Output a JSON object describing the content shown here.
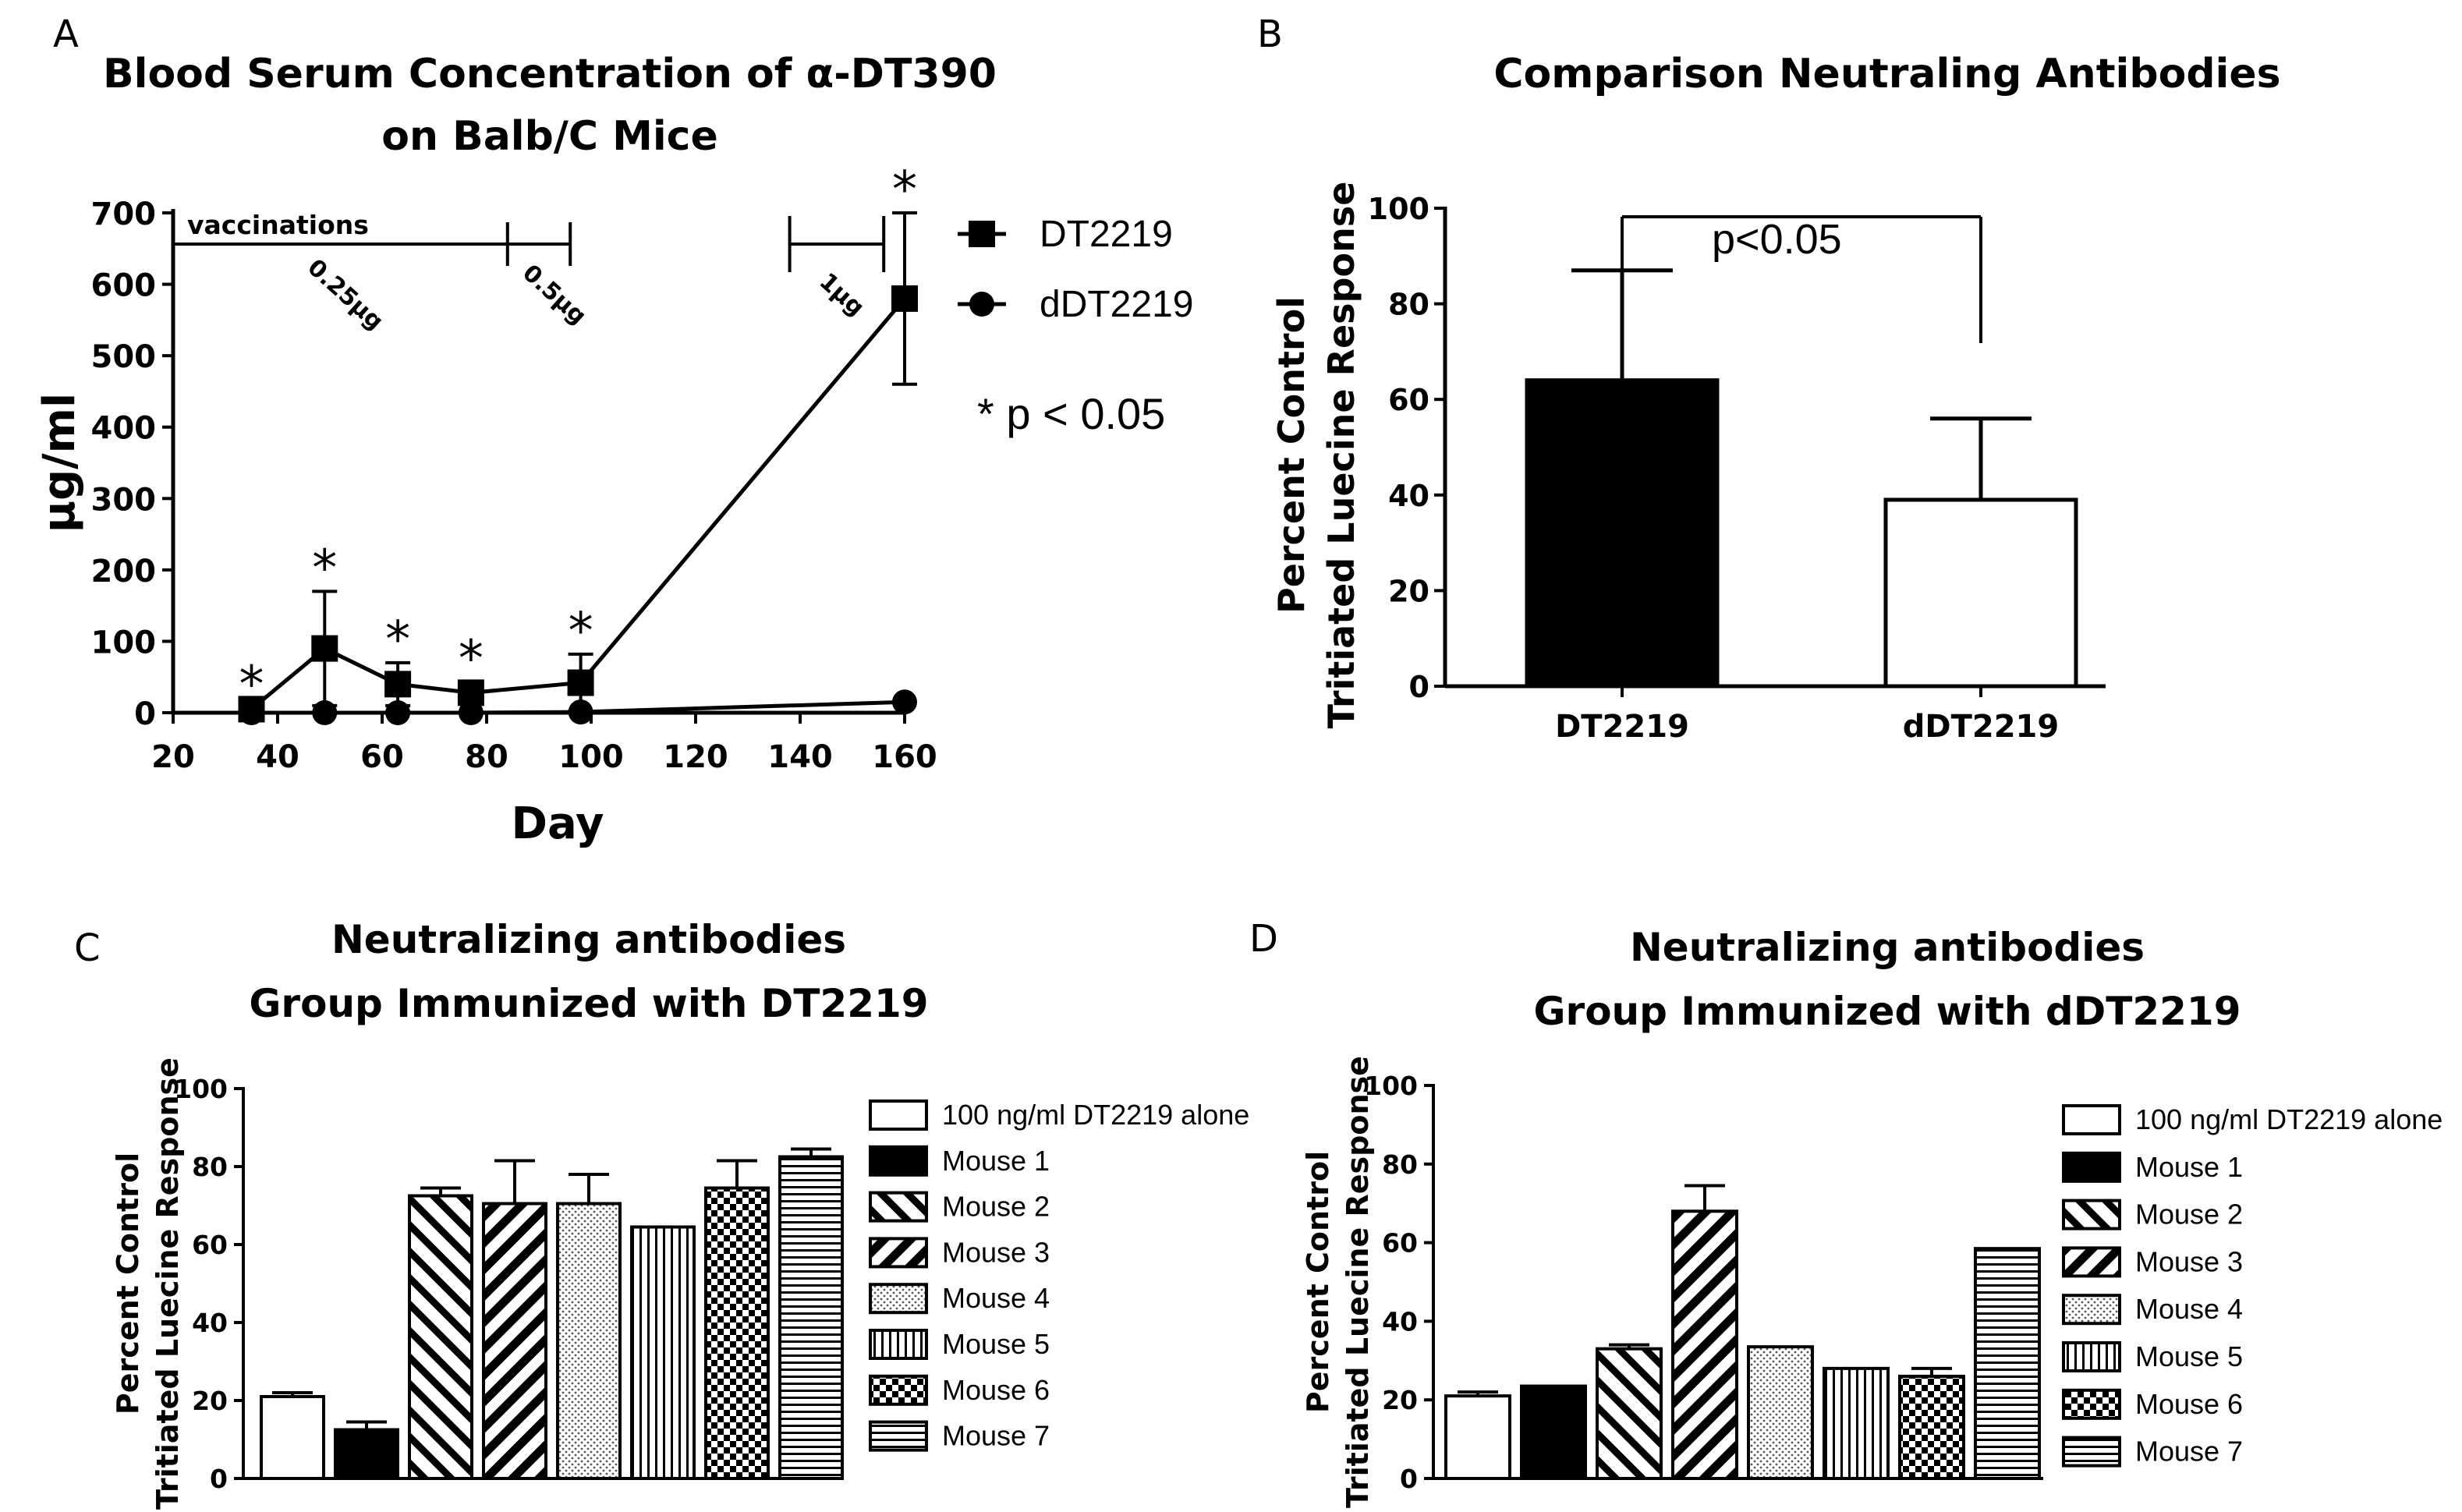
{
  "colors": {
    "ink": "#000000",
    "paper": "#ffffff"
  },
  "chart_data": [
    {
      "panel": "A",
      "type": "line",
      "title": "Blood Serum Concentration of α-DT390",
      "subtitle": "on Balb/C Mice",
      "xlabel": "Day",
      "ylabel": "μg/ml",
      "xlim": [
        20,
        160
      ],
      "ylim": [
        0,
        700
      ],
      "xticks": [
        20,
        40,
        60,
        80,
        100,
        120,
        140,
        160
      ],
      "yticks": [
        0,
        100,
        200,
        300,
        400,
        500,
        600,
        700
      ],
      "series": [
        {
          "name": "DT2219",
          "marker": "square",
          "x": [
            35,
            49,
            63,
            77,
            98,
            160
          ],
          "y": [
            5,
            90,
            40,
            28,
            42,
            580
          ],
          "err": [
            2,
            80,
            30,
            15,
            40,
            120
          ]
        },
        {
          "name": "dDT2219",
          "marker": "circle",
          "x": [
            35,
            49,
            63,
            77,
            98,
            160
          ],
          "y": [
            0,
            0,
            0,
            0,
            1,
            15
          ],
          "err": [
            0,
            0,
            0,
            0,
            0,
            0
          ]
        }
      ],
      "significance_x": [
        35,
        49,
        63,
        77,
        98,
        160
      ],
      "significance_symbol": "*",
      "significance_note": "* p < 0.05",
      "annotations": {
        "vaccinations_label": "vaccinations",
        "vaccination_span": [
          20,
          96
        ],
        "vaccination_mark": 84,
        "boost_span": [
          138,
          156
        ],
        "dose_labels": [
          {
            "text": "0.25μg",
            "x": 52
          },
          {
            "text": "0.5μg",
            "x": 92
          },
          {
            "text": "1μg",
            "x": 147
          }
        ]
      }
    },
    {
      "panel": "B",
      "type": "bar",
      "title": "Comparison Neutraling Antibodies",
      "ylabel": [
        "Percent Control",
        "Tritiated Luecine Response"
      ],
      "ylim": [
        0,
        100
      ],
      "yticks": [
        0,
        20,
        40,
        60,
        80,
        100
      ],
      "categories": [
        "DT2219",
        "dDT2219"
      ],
      "values": [
        64,
        39
      ],
      "err": [
        23,
        17
      ],
      "fills": [
        "solid",
        "open"
      ],
      "significance": "p<0.05"
    },
    {
      "panel": "C",
      "type": "bar",
      "title": "Neutralizing antibodies",
      "subtitle": "Group Immunized with DT2219",
      "ylabel": [
        "Percent Control",
        "Tritiated Luecine Response"
      ],
      "ylim": [
        0,
        100
      ],
      "yticks": [
        0,
        20,
        40,
        60,
        80,
        100
      ],
      "categories": [
        "100 ng/ml DT2219 alone",
        "Mouse 1",
        "Mouse 2",
        "Mouse 3",
        "Mouse 4",
        "Mouse 5",
        "Mouse 6",
        "Mouse 7"
      ],
      "values": [
        21,
        12.5,
        72.5,
        70.5,
        70.5,
        64.5,
        74.5,
        82.5
      ],
      "err": [
        1,
        2,
        2,
        11,
        7.5,
        0,
        7,
        2
      ]
    },
    {
      "panel": "D",
      "type": "bar",
      "title": "Neutralizing antibodies",
      "subtitle": "Group Immunized with dDT2219",
      "ylabel": [
        "Percent Control",
        "Tritiated Luecine Response"
      ],
      "ylim": [
        0,
        100
      ],
      "yticks": [
        0,
        20,
        40,
        60,
        80,
        100
      ],
      "categories": [
        "100 ng/ml DT2219 alone",
        "Mouse 1",
        "Mouse 2",
        "Mouse 3",
        "Mouse 4",
        "Mouse 5",
        "Mouse 6",
        "Mouse 7"
      ],
      "values": [
        21,
        23.5,
        33,
        68,
        33.5,
        28,
        26,
        58.5
      ],
      "err": [
        1,
        0,
        1,
        6.5,
        0,
        0,
        2,
        0
      ]
    }
  ]
}
